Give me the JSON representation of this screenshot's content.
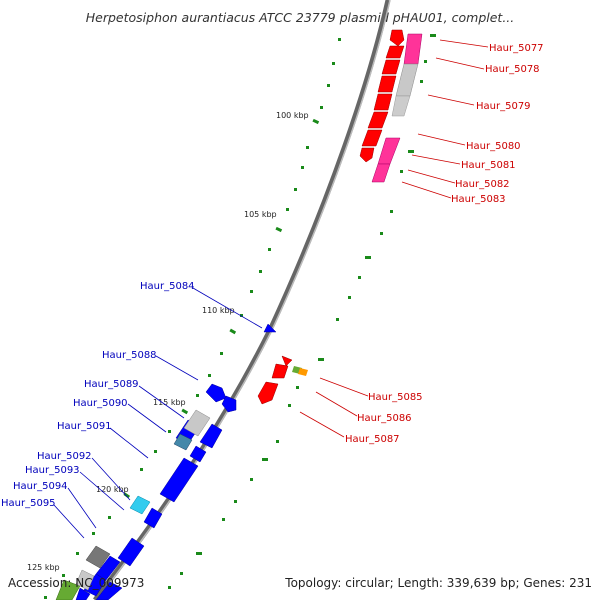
{
  "header": {
    "title": "Herpetosiphon aurantiacus ATCC 23779 plasmid pHAU01, complet..."
  },
  "footer": {
    "accession": "Accession: NC_009973",
    "summary": "Topology: circular; Length: 339,639 bp; Genes: 231"
  },
  "scale_labels": [
    "100 kbp",
    "105 kbp",
    "110 kbp",
    "115 kbp",
    "120 kbp",
    "125 kbp"
  ],
  "genes_forward": [
    "Haur_5077",
    "Haur_5078",
    "Haur_5079",
    "Haur_5080",
    "Haur_5081",
    "Haur_5082",
    "Haur_5083",
    "Haur_5085",
    "Haur_5086",
    "Haur_5087"
  ],
  "genes_reverse": [
    "Haur_5084",
    "Haur_5088",
    "Haur_5089",
    "Haur_5090",
    "Haur_5091",
    "Haur_5092",
    "Haur_5093",
    "Haur_5094",
    "Haur_5095"
  ],
  "colors": {
    "forward": "#ff0000",
    "reverse": "#0000ff",
    "pseudo": "#c8c8c8",
    "pink": "#ff3399",
    "backbone": "#777777",
    "skew": "#1a8a1a",
    "cyan": "#33ccee",
    "teal": "#4488aa",
    "olive": "#66aa33",
    "orange": "#ff9900"
  }
}
